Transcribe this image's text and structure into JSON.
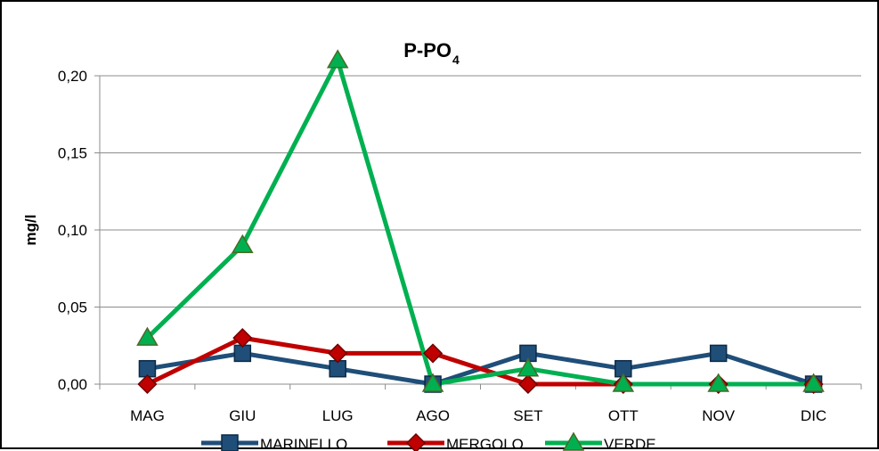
{
  "chart_data": {
    "type": "line",
    "title": "P-PO",
    "title_subscript": "4",
    "xlabel": "",
    "ylabel": "mg/l",
    "categories": [
      "MAG",
      "GIU",
      "LUG",
      "AGO",
      "SET",
      "OTT",
      "NOV",
      "DIC"
    ],
    "ylim": [
      0,
      0.2
    ],
    "yticks": [
      "0,00",
      "0,05",
      "0,10",
      "0,15",
      "0,20"
    ],
    "ytick_values": [
      0,
      0.05,
      0.1,
      0.15,
      0.2
    ],
    "grid": true,
    "legend_position": "bottom",
    "series": [
      {
        "name": "MARINELLO",
        "color": "#1F4E79",
        "marker": "square",
        "values": [
          0.01,
          0.02,
          0.01,
          0.0,
          0.02,
          0.01,
          0.02,
          0.0
        ]
      },
      {
        "name": "MERGOLO",
        "color": "#C00000",
        "marker": "diamond",
        "values": [
          0.0,
          0.03,
          0.02,
          0.02,
          0.0,
          0.0,
          0.0,
          0.0
        ]
      },
      {
        "name": "VERDE",
        "color": "#00B050",
        "marker": "triangle",
        "values": [
          0.03,
          0.09,
          0.21,
          0.0,
          0.01,
          0.0,
          0.0,
          0.0
        ]
      }
    ]
  }
}
